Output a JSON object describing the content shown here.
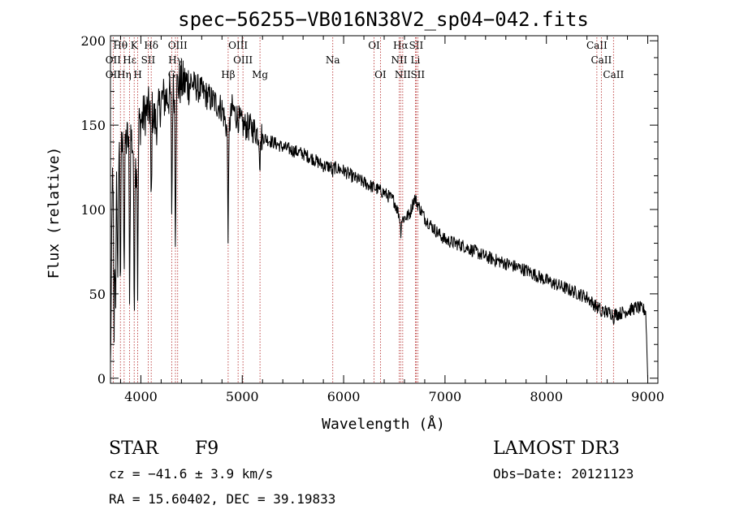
{
  "chart_data": {
    "type": "line",
    "title": "spec−56255−VB016N38V2_sp04−042.fits",
    "xlabel": "Wavelength (Å)",
    "ylabel": "Flux (relative)",
    "xlim": [
      3700,
      9100
    ],
    "ylim": [
      -3,
      203
    ],
    "xticks": [
      4000,
      5000,
      6000,
      7000,
      8000,
      9000
    ],
    "yticks": [
      0,
      50,
      100,
      150,
      200
    ],
    "grid": false,
    "colors": {
      "spectrum": "#000000",
      "lines": "#b22222",
      "text": "#000000"
    },
    "spectrum_anchors": {
      "x": [
        3700,
        3720,
        3760,
        3800,
        3850,
        3900,
        3950,
        3980,
        4000,
        4050,
        4100,
        4150,
        4200,
        4300,
        4340,
        4400,
        4500,
        4600,
        4700,
        4800,
        4860,
        4900,
        5000,
        5100,
        5200,
        5300,
        5400,
        5500,
        5600,
        5700,
        5800,
        5900,
        6000,
        6100,
        6200,
        6300,
        6400,
        6500,
        6563,
        6600,
        6650,
        6700,
        6800,
        6900,
        7000,
        7200,
        7400,
        7600,
        7800,
        8000,
        8200,
        8400,
        8500,
        8600,
        8700,
        8800,
        8900,
        8980,
        9000
      ],
      "y": [
        5,
        120,
        130,
        135,
        140,
        145,
        125,
        150,
        152,
        158,
        160,
        150,
        165,
        168,
        172,
        175,
        175,
        170,
        165,
        160,
        145,
        160,
        150,
        148,
        143,
        140,
        137,
        135,
        133,
        130,
        126,
        125,
        123,
        119,
        116,
        113,
        110,
        105,
        94,
        95,
        97,
        107,
        95,
        88,
        82,
        78,
        72,
        68,
        64,
        58,
        53,
        48,
        42,
        39,
        38,
        40,
        42,
        40,
        0
      ],
      "noise_level": 4
    },
    "absorption_dips": [
      {
        "x": 3736,
        "y": 12
      },
      {
        "x": 3750,
        "y": 30
      },
      {
        "x": 3771,
        "y": 40
      },
      {
        "x": 3798,
        "y": 50
      },
      {
        "x": 3835,
        "y": 60
      },
      {
        "x": 3889,
        "y": 45
      },
      {
        "x": 3934,
        "y": 35
      },
      {
        "x": 3969,
        "y": 45
      },
      {
        "x": 4102,
        "y": 95
      },
      {
        "x": 4305,
        "y": 95
      },
      {
        "x": 4341,
        "y": 80
      },
      {
        "x": 4861,
        "y": 82
      },
      {
        "x": 5175,
        "y": 125
      },
      {
        "x": 5890,
        "y": 120
      },
      {
        "x": 6563,
        "y": 86
      },
      {
        "x": 8542,
        "y": 35
      },
      {
        "x": 8662,
        "y": 35
      }
    ],
    "line_markers": [
      {
        "label": "Hθ",
        "wavelength": 3798,
        "row": 0
      },
      {
        "label": "OII",
        "wavelength": 3727,
        "row": 1
      },
      {
        "label": "OII",
        "wavelength": 3727,
        "row": 2
      },
      {
        "label": "Hη",
        "wavelength": 3835,
        "row": 2
      },
      {
        "label": "Hε",
        "wavelength": 3889,
        "row": 1
      },
      {
        "label": "K",
        "wavelength": 3934,
        "row": 0
      },
      {
        "label": "H",
        "wavelength": 3969,
        "row": 2
      },
      {
        "label": "SII",
        "wavelength": 4072,
        "row": 1
      },
      {
        "label": "Hδ",
        "wavelength": 4102,
        "row": 0
      },
      {
        "label": "OIII",
        "wavelength": 4363,
        "row": 0
      },
      {
        "label": "Hγ",
        "wavelength": 4341,
        "row": 1
      },
      {
        "label": "G",
        "wavelength": 4305,
        "row": 2
      },
      {
        "label": "OIII",
        "wavelength": 4959,
        "row": 0
      },
      {
        "label": "OIII",
        "wavelength": 5007,
        "row": 1
      },
      {
        "label": "Hβ",
        "wavelength": 4861,
        "row": 2
      },
      {
        "label": "Mg",
        "wavelength": 5175,
        "row": 2
      },
      {
        "label": "Na",
        "wavelength": 5893,
        "row": 1
      },
      {
        "label": "OI",
        "wavelength": 6300,
        "row": 0
      },
      {
        "label": "OI",
        "wavelength": 6363,
        "row": 2
      },
      {
        "label": "Hα",
        "wavelength": 6563,
        "row": 0
      },
      {
        "label": "SII",
        "wavelength": 6716,
        "row": 0
      },
      {
        "label": "NII",
        "wavelength": 6548,
        "row": 1
      },
      {
        "label": "Li",
        "wavelength": 6708,
        "row": 1
      },
      {
        "label": "NII",
        "wavelength": 6583,
        "row": 2
      },
      {
        "label": "SII",
        "wavelength": 6731,
        "row": 2
      },
      {
        "label": "CaII",
        "wavelength": 8498,
        "row": 0
      },
      {
        "label": "CaII",
        "wavelength": 8542,
        "row": 1
      },
      {
        "label": "CaII",
        "wavelength": 8662,
        "row": 2
      }
    ]
  },
  "info": {
    "object_class": "STAR",
    "subclass": "F9",
    "survey": "LAMOST DR3",
    "redshift_line": "cz = −41.6 ± 3.9 km/s",
    "obs_date_line": "Obs−Date: 20121123",
    "coords_line": "RA =  15.60402, DEC =  39.19833"
  }
}
